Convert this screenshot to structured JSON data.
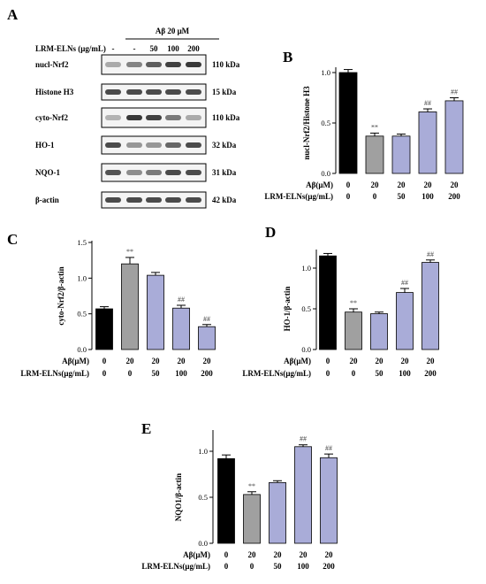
{
  "blot": {
    "panel_label": "A",
    "treatment_label": "Aβ 20 μM",
    "row_label": "LRM-ELNs (μg/mL)",
    "lane_values": [
      "-",
      "-",
      "50",
      "100",
      "200"
    ],
    "bands": [
      {
        "name": "nucl-Nrf2",
        "size": "110 kDa",
        "intensity": [
          0.35,
          0.55,
          0.75,
          0.9,
          0.95
        ]
      },
      {
        "name": "Histone H3",
        "size": "15 kDa",
        "intensity": [
          0.85,
          0.85,
          0.85,
          0.85,
          0.85
        ]
      },
      {
        "name": "cyto-Nrf2",
        "size": "110 kDa",
        "intensity": [
          0.3,
          0.95,
          0.9,
          0.6,
          0.35
        ]
      },
      {
        "name": "HO-1",
        "size": "32 kDa",
        "intensity": [
          0.85,
          0.45,
          0.45,
          0.7,
          0.85
        ]
      },
      {
        "name": "NQO-1",
        "size": "31 kDa",
        "intensity": [
          0.8,
          0.5,
          0.6,
          0.85,
          0.85
        ]
      },
      {
        "name": "β-actin",
        "size": "42 kDa",
        "intensity": [
          0.85,
          0.85,
          0.85,
          0.85,
          0.85
        ]
      }
    ]
  },
  "conditions": {
    "row1_label": "Aβ(μM)",
    "row1_values": [
      "0",
      "20",
      "20",
      "20",
      "20"
    ],
    "row2_label": "LRM-ELNs(μg/mL)",
    "row2_values": [
      "0",
      "0",
      "50",
      "100",
      "200"
    ]
  },
  "colors": {
    "control": "#000000",
    "model": "#a0a0a0",
    "treated": "#a9acd8"
  },
  "chart_data": [
    {
      "panel": "B",
      "type": "bar",
      "ylabel": "nucl-Nrf2/Histone H3",
      "ylim": [
        0,
        1.0
      ],
      "yticks": [
        "0.0",
        "0.5",
        "1.0"
      ],
      "values": [
        1.0,
        0.37,
        0.37,
        0.61,
        0.72
      ],
      "errors": [
        0.03,
        0.03,
        0.02,
        0.03,
        0.03
      ],
      "marks": [
        "",
        "**",
        "",
        "##",
        "##"
      ]
    },
    {
      "panel": "C",
      "type": "bar",
      "ylabel": "cyto-Nrf2/β-actin",
      "ylim": [
        0,
        1.5
      ],
      "yticks": [
        "0.0",
        "0.5",
        "1.0",
        "1.5"
      ],
      "values": [
        0.57,
        1.2,
        1.04,
        0.58,
        0.32
      ],
      "errors": [
        0.03,
        0.09,
        0.04,
        0.04,
        0.03
      ],
      "marks": [
        "",
        "**",
        "",
        "##",
        "##"
      ]
    },
    {
      "panel": "D",
      "type": "bar",
      "ylabel": "HO-1/β-actin",
      "ylim": [
        0,
        1.0
      ],
      "yticks": [
        "0.0",
        "0.5",
        "1.0"
      ],
      "values": [
        1.15,
        0.46,
        0.44,
        0.7,
        1.07
      ],
      "errors": [
        0.03,
        0.04,
        0.02,
        0.05,
        0.03
      ],
      "marks": [
        "",
        "**",
        "",
        "##",
        "##"
      ]
    },
    {
      "panel": "E",
      "type": "bar",
      "ylabel": "NQO1/β-actin",
      "ylim": [
        0,
        1.0
      ],
      "yticks": [
        "0.0",
        "0.5",
        "1.0"
      ],
      "values": [
        0.92,
        0.53,
        0.66,
        1.05,
        0.93
      ],
      "errors": [
        0.04,
        0.03,
        0.02,
        0.02,
        0.04
      ],
      "marks": [
        "",
        "**",
        "",
        "##",
        "##"
      ]
    }
  ]
}
